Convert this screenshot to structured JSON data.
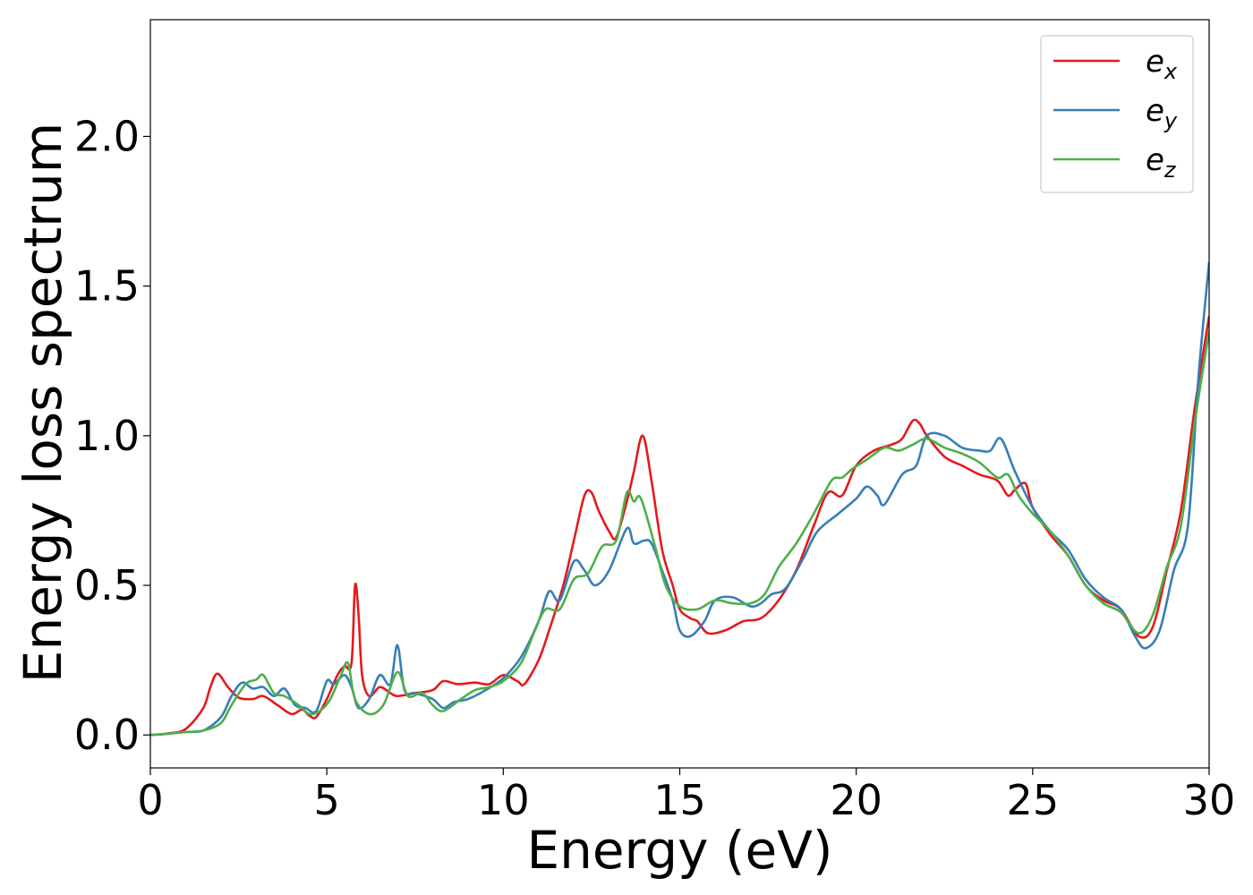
{
  "chart_data": {
    "type": "line",
    "title": "",
    "xlabel": "Energy (eV)",
    "ylabel": "Energy loss spectrum",
    "xlim": [
      0,
      30
    ],
    "ylim": [
      -0.11,
      2.39
    ],
    "xticks": [
      0,
      5,
      10,
      15,
      20,
      25,
      30
    ],
    "xtick_labels": [
      "0",
      "5",
      "10",
      "15",
      "20",
      "25",
      "30"
    ],
    "yticks": [
      0.0,
      0.5,
      1.0,
      1.5,
      2.0
    ],
    "ytick_labels": [
      "0.0",
      "0.5",
      "1.0",
      "1.5",
      "2.0"
    ],
    "grid": false,
    "legend_position": "top-right",
    "series": [
      {
        "name": "e_x",
        "legend_base": "e",
        "legend_sub": "x",
        "color": "#e41a1c",
        "points": [
          [
            0,
            0
          ],
          [
            0.5,
            0.005
          ],
          [
            1.0,
            0.02
          ],
          [
            1.5,
            0.09
          ],
          [
            1.7,
            0.16
          ],
          [
            1.9,
            0.205
          ],
          [
            2.2,
            0.16
          ],
          [
            2.5,
            0.125
          ],
          [
            2.9,
            0.12
          ],
          [
            3.2,
            0.13
          ],
          [
            3.6,
            0.1
          ],
          [
            4.0,
            0.07
          ],
          [
            4.3,
            0.085
          ],
          [
            4.5,
            0.065
          ],
          [
            4.7,
            0.06
          ],
          [
            5.0,
            0.12
          ],
          [
            5.3,
            0.2
          ],
          [
            5.5,
            0.23
          ],
          [
            5.7,
            0.24
          ],
          [
            5.8,
            0.5
          ],
          [
            5.9,
            0.4
          ],
          [
            6.0,
            0.2
          ],
          [
            6.2,
            0.13
          ],
          [
            6.5,
            0.16
          ],
          [
            6.8,
            0.14
          ],
          [
            7.0,
            0.13
          ],
          [
            7.5,
            0.14
          ],
          [
            8.0,
            0.15
          ],
          [
            8.3,
            0.18
          ],
          [
            8.7,
            0.17
          ],
          [
            9.2,
            0.175
          ],
          [
            9.6,
            0.17
          ],
          [
            10.0,
            0.2
          ],
          [
            10.4,
            0.18
          ],
          [
            10.6,
            0.17
          ],
          [
            11.0,
            0.25
          ],
          [
            11.3,
            0.35
          ],
          [
            11.7,
            0.5
          ],
          [
            12.0,
            0.65
          ],
          [
            12.3,
            0.8
          ],
          [
            12.5,
            0.81
          ],
          [
            12.7,
            0.75
          ],
          [
            13.0,
            0.68
          ],
          [
            13.2,
            0.66
          ],
          [
            13.5,
            0.78
          ],
          [
            13.7,
            0.88
          ],
          [
            13.95,
            1.0
          ],
          [
            14.2,
            0.85
          ],
          [
            14.5,
            0.62
          ],
          [
            14.8,
            0.5
          ],
          [
            15.0,
            0.42
          ],
          [
            15.3,
            0.39
          ],
          [
            15.5,
            0.38
          ],
          [
            15.8,
            0.34
          ],
          [
            16.3,
            0.35
          ],
          [
            16.8,
            0.38
          ],
          [
            17.3,
            0.39
          ],
          [
            17.8,
            0.45
          ],
          [
            18.3,
            0.55
          ],
          [
            18.8,
            0.7
          ],
          [
            19.2,
            0.81
          ],
          [
            19.6,
            0.8
          ],
          [
            20.0,
            0.9
          ],
          [
            20.5,
            0.95
          ],
          [
            21.0,
            0.97
          ],
          [
            21.3,
            0.99
          ],
          [
            21.6,
            1.05
          ],
          [
            21.8,
            1.04
          ],
          [
            22.0,
            1.0
          ],
          [
            22.5,
            0.93
          ],
          [
            23.0,
            0.9
          ],
          [
            23.5,
            0.87
          ],
          [
            24.0,
            0.85
          ],
          [
            24.3,
            0.8
          ],
          [
            24.5,
            0.82
          ],
          [
            24.8,
            0.84
          ],
          [
            25.0,
            0.76
          ],
          [
            25.5,
            0.67
          ],
          [
            26.0,
            0.6
          ],
          [
            26.5,
            0.5
          ],
          [
            27.0,
            0.45
          ],
          [
            27.5,
            0.42
          ],
          [
            28.0,
            0.33
          ],
          [
            28.4,
            0.36
          ],
          [
            28.8,
            0.55
          ],
          [
            29.2,
            0.75
          ],
          [
            29.6,
            1.1
          ],
          [
            30.0,
            1.4
          ]
        ]
      },
      {
        "name": "e_y",
        "legend_base": "e",
        "legend_sub": "y",
        "color": "#377eb8",
        "points": [
          [
            0,
            0
          ],
          [
            0.5,
            0.004
          ],
          [
            1.0,
            0.01
          ],
          [
            1.5,
            0.015
          ],
          [
            2.0,
            0.06
          ],
          [
            2.3,
            0.13
          ],
          [
            2.6,
            0.175
          ],
          [
            2.9,
            0.155
          ],
          [
            3.2,
            0.16
          ],
          [
            3.5,
            0.13
          ],
          [
            3.8,
            0.155
          ],
          [
            4.1,
            0.1
          ],
          [
            4.4,
            0.09
          ],
          [
            4.7,
            0.08
          ],
          [
            5.0,
            0.18
          ],
          [
            5.2,
            0.17
          ],
          [
            5.5,
            0.2
          ],
          [
            5.7,
            0.16
          ],
          [
            5.9,
            0.09
          ],
          [
            6.2,
            0.12
          ],
          [
            6.5,
            0.2
          ],
          [
            6.8,
            0.17
          ],
          [
            7.0,
            0.3
          ],
          [
            7.2,
            0.15
          ],
          [
            7.5,
            0.14
          ],
          [
            8.0,
            0.12
          ],
          [
            8.3,
            0.09
          ],
          [
            8.6,
            0.11
          ],
          [
            9.0,
            0.12
          ],
          [
            9.5,
            0.15
          ],
          [
            10.0,
            0.19
          ],
          [
            10.5,
            0.26
          ],
          [
            11.0,
            0.38
          ],
          [
            11.3,
            0.48
          ],
          [
            11.6,
            0.45
          ],
          [
            12.0,
            0.58
          ],
          [
            12.3,
            0.55
          ],
          [
            12.6,
            0.5
          ],
          [
            13.0,
            0.55
          ],
          [
            13.5,
            0.69
          ],
          [
            13.7,
            0.64
          ],
          [
            14.0,
            0.65
          ],
          [
            14.2,
            0.64
          ],
          [
            14.5,
            0.55
          ],
          [
            14.8,
            0.45
          ],
          [
            15.0,
            0.35
          ],
          [
            15.3,
            0.33
          ],
          [
            15.7,
            0.38
          ],
          [
            16.0,
            0.45
          ],
          [
            16.5,
            0.46
          ],
          [
            17.0,
            0.43
          ],
          [
            17.3,
            0.44
          ],
          [
            17.6,
            0.47
          ],
          [
            18.0,
            0.49
          ],
          [
            18.5,
            0.59
          ],
          [
            18.9,
            0.68
          ],
          [
            19.5,
            0.74
          ],
          [
            20.0,
            0.79
          ],
          [
            20.3,
            0.83
          ],
          [
            20.6,
            0.8
          ],
          [
            20.8,
            0.77
          ],
          [
            21.3,
            0.87
          ],
          [
            21.7,
            0.9
          ],
          [
            22.0,
            1.0
          ],
          [
            22.5,
            1.0
          ],
          [
            23.0,
            0.96
          ],
          [
            23.5,
            0.95
          ],
          [
            23.8,
            0.95
          ],
          [
            24.1,
            0.99
          ],
          [
            24.5,
            0.88
          ],
          [
            25.0,
            0.76
          ],
          [
            25.5,
            0.68
          ],
          [
            26.0,
            0.62
          ],
          [
            26.5,
            0.52
          ],
          [
            27.0,
            0.46
          ],
          [
            27.5,
            0.42
          ],
          [
            27.9,
            0.33
          ],
          [
            28.2,
            0.29
          ],
          [
            28.6,
            0.35
          ],
          [
            29.0,
            0.55
          ],
          [
            29.4,
            0.7
          ],
          [
            29.7,
            1.2
          ],
          [
            30.0,
            1.58
          ]
        ]
      },
      {
        "name": "e_z",
        "legend_base": "e",
        "legend_sub": "z",
        "color": "#4daf4a",
        "points": [
          [
            0,
            0
          ],
          [
            0.5,
            0.004
          ],
          [
            1.0,
            0.01
          ],
          [
            1.5,
            0.015
          ],
          [
            2.0,
            0.04
          ],
          [
            2.3,
            0.1
          ],
          [
            2.7,
            0.17
          ],
          [
            3.0,
            0.185
          ],
          [
            3.2,
            0.2
          ],
          [
            3.5,
            0.14
          ],
          [
            3.8,
            0.13
          ],
          [
            4.2,
            0.1
          ],
          [
            4.5,
            0.07
          ],
          [
            4.8,
            0.08
          ],
          [
            5.1,
            0.12
          ],
          [
            5.4,
            0.2
          ],
          [
            5.6,
            0.24
          ],
          [
            5.8,
            0.12
          ],
          [
            6.2,
            0.07
          ],
          [
            6.6,
            0.1
          ],
          [
            7.0,
            0.21
          ],
          [
            7.3,
            0.13
          ],
          [
            7.7,
            0.14
          ],
          [
            8.0,
            0.1
          ],
          [
            8.3,
            0.08
          ],
          [
            8.8,
            0.12
          ],
          [
            9.2,
            0.15
          ],
          [
            9.6,
            0.16
          ],
          [
            10.0,
            0.18
          ],
          [
            10.5,
            0.24
          ],
          [
            10.9,
            0.35
          ],
          [
            11.2,
            0.42
          ],
          [
            11.6,
            0.42
          ],
          [
            12.0,
            0.52
          ],
          [
            12.4,
            0.54
          ],
          [
            12.8,
            0.63
          ],
          [
            13.2,
            0.65
          ],
          [
            13.5,
            0.81
          ],
          [
            13.7,
            0.78
          ],
          [
            13.9,
            0.79
          ],
          [
            14.3,
            0.63
          ],
          [
            14.6,
            0.5
          ],
          [
            15.0,
            0.43
          ],
          [
            15.5,
            0.42
          ],
          [
            16.0,
            0.45
          ],
          [
            16.5,
            0.44
          ],
          [
            17.0,
            0.44
          ],
          [
            17.4,
            0.47
          ],
          [
            17.8,
            0.56
          ],
          [
            18.3,
            0.64
          ],
          [
            18.8,
            0.74
          ],
          [
            19.3,
            0.85
          ],
          [
            19.6,
            0.86
          ],
          [
            19.9,
            0.89
          ],
          [
            20.3,
            0.92
          ],
          [
            20.8,
            0.96
          ],
          [
            21.2,
            0.95
          ],
          [
            21.6,
            0.97
          ],
          [
            22.0,
            0.99
          ],
          [
            22.5,
            0.96
          ],
          [
            23.0,
            0.94
          ],
          [
            23.5,
            0.91
          ],
          [
            24.0,
            0.86
          ],
          [
            24.3,
            0.87
          ],
          [
            24.6,
            0.8
          ],
          [
            25.0,
            0.74
          ],
          [
            25.5,
            0.68
          ],
          [
            26.0,
            0.6
          ],
          [
            26.5,
            0.5
          ],
          [
            27.0,
            0.44
          ],
          [
            27.5,
            0.41
          ],
          [
            28.0,
            0.34
          ],
          [
            28.4,
            0.4
          ],
          [
            28.8,
            0.56
          ],
          [
            29.2,
            0.7
          ],
          [
            29.6,
            1.05
          ],
          [
            30.0,
            1.35
          ]
        ]
      }
    ]
  }
}
